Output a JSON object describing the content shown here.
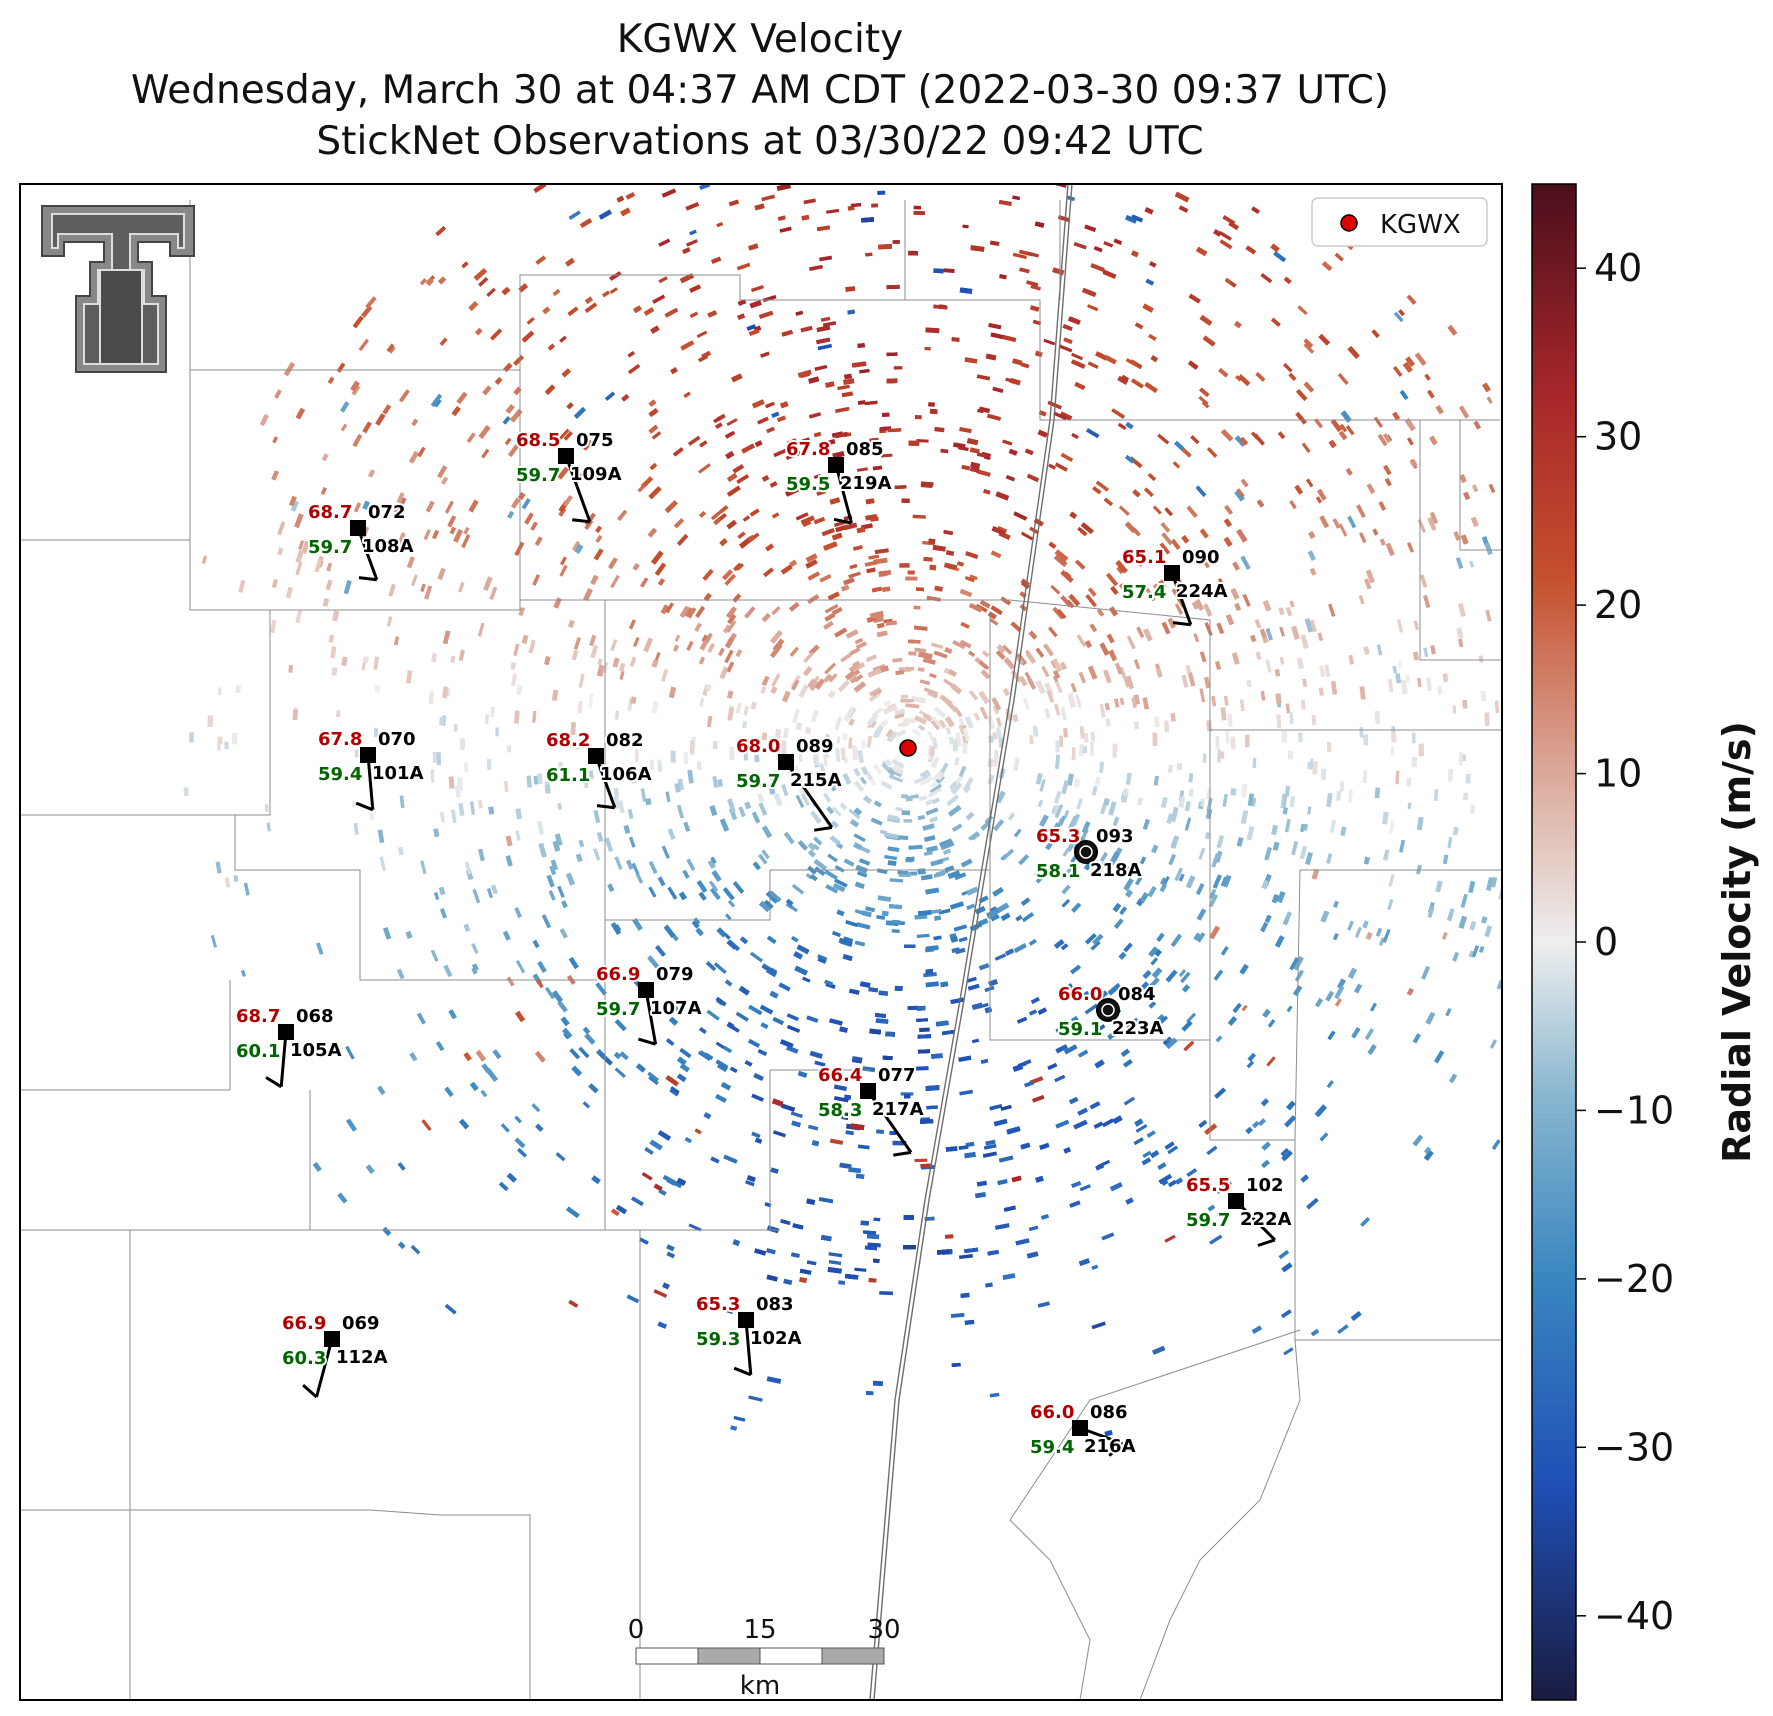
{
  "title": {
    "line1": "KGWX Velocity",
    "line2": "Wednesday, March 30 at 04:37 AM CDT (2022-03-30 09:37 UTC)",
    "line3": "StickNet Observations at 03/30/22 09:42 UTC"
  },
  "legend": {
    "label": "KGWX",
    "marker_color": "#e00000"
  },
  "colorbar": {
    "label": "Radial Velocity (m/s)",
    "min": -45,
    "max": 45,
    "ticks": [
      "40",
      "30",
      "20",
      "10",
      "0",
      "−10",
      "−20",
      "−30",
      "−40"
    ],
    "tick_values": [
      40,
      30,
      20,
      10,
      0,
      -10,
      -20,
      -30,
      -40
    ],
    "colors": [
      "#1a1c40",
      "#1f4fb5",
      "#3a87c0",
      "#8ab7cf",
      "#eeeeee",
      "#d9a393",
      "#c5502e",
      "#a8272a",
      "#4a0f1c"
    ]
  },
  "scale_bar": {
    "labels": [
      "0",
      "15",
      "30"
    ],
    "unit": "km"
  },
  "radar": {
    "name": "KGWX"
  },
  "stations": [
    {
      "id": "075",
      "temp": "68.5",
      "dew": "59.7",
      "code": "109A",
      "marker": "square"
    },
    {
      "id": "085",
      "temp": "67.8",
      "dew": "59.5",
      "code": "219A",
      "marker": "square"
    },
    {
      "id": "072",
      "temp": "68.7",
      "dew": "59.7",
      "code": "108A",
      "marker": "square"
    },
    {
      "id": "090",
      "temp": "65.1",
      "dew": "57.4",
      "code": "224A",
      "marker": "square"
    },
    {
      "id": "070",
      "temp": "67.8",
      "dew": "59.4",
      "code": "101A",
      "marker": "square"
    },
    {
      "id": "082",
      "temp": "68.2",
      "dew": "61.1",
      "code": "106A",
      "marker": "square"
    },
    {
      "id": "089",
      "temp": "68.0",
      "dew": "59.7",
      "code": "215A",
      "marker": "square"
    },
    {
      "id": "093",
      "temp": "65.3",
      "dew": "58.1",
      "code": "218A",
      "marker": "circle"
    },
    {
      "id": "079",
      "temp": "66.9",
      "dew": "59.7",
      "code": "107A",
      "marker": "square"
    },
    {
      "id": "084",
      "temp": "66.0",
      "dew": "59.1",
      "code": "223A",
      "marker": "circle"
    },
    {
      "id": "068",
      "temp": "68.7",
      "dew": "60.1",
      "code": "105A",
      "marker": "square"
    },
    {
      "id": "077",
      "temp": "66.4",
      "dew": "58.3",
      "code": "217A",
      "marker": "square"
    },
    {
      "id": "102",
      "temp": "65.5",
      "dew": "59.7",
      "code": "222A",
      "marker": "square"
    },
    {
      "id": "083",
      "temp": "65.3",
      "dew": "59.3",
      "code": "102A",
      "marker": "square"
    },
    {
      "id": "069",
      "temp": "66.9",
      "dew": "60.3",
      "code": "112A",
      "marker": "square"
    },
    {
      "id": "086",
      "temp": "66.0",
      "dew": "59.4",
      "code": "216A",
      "marker": "square"
    }
  ]
}
